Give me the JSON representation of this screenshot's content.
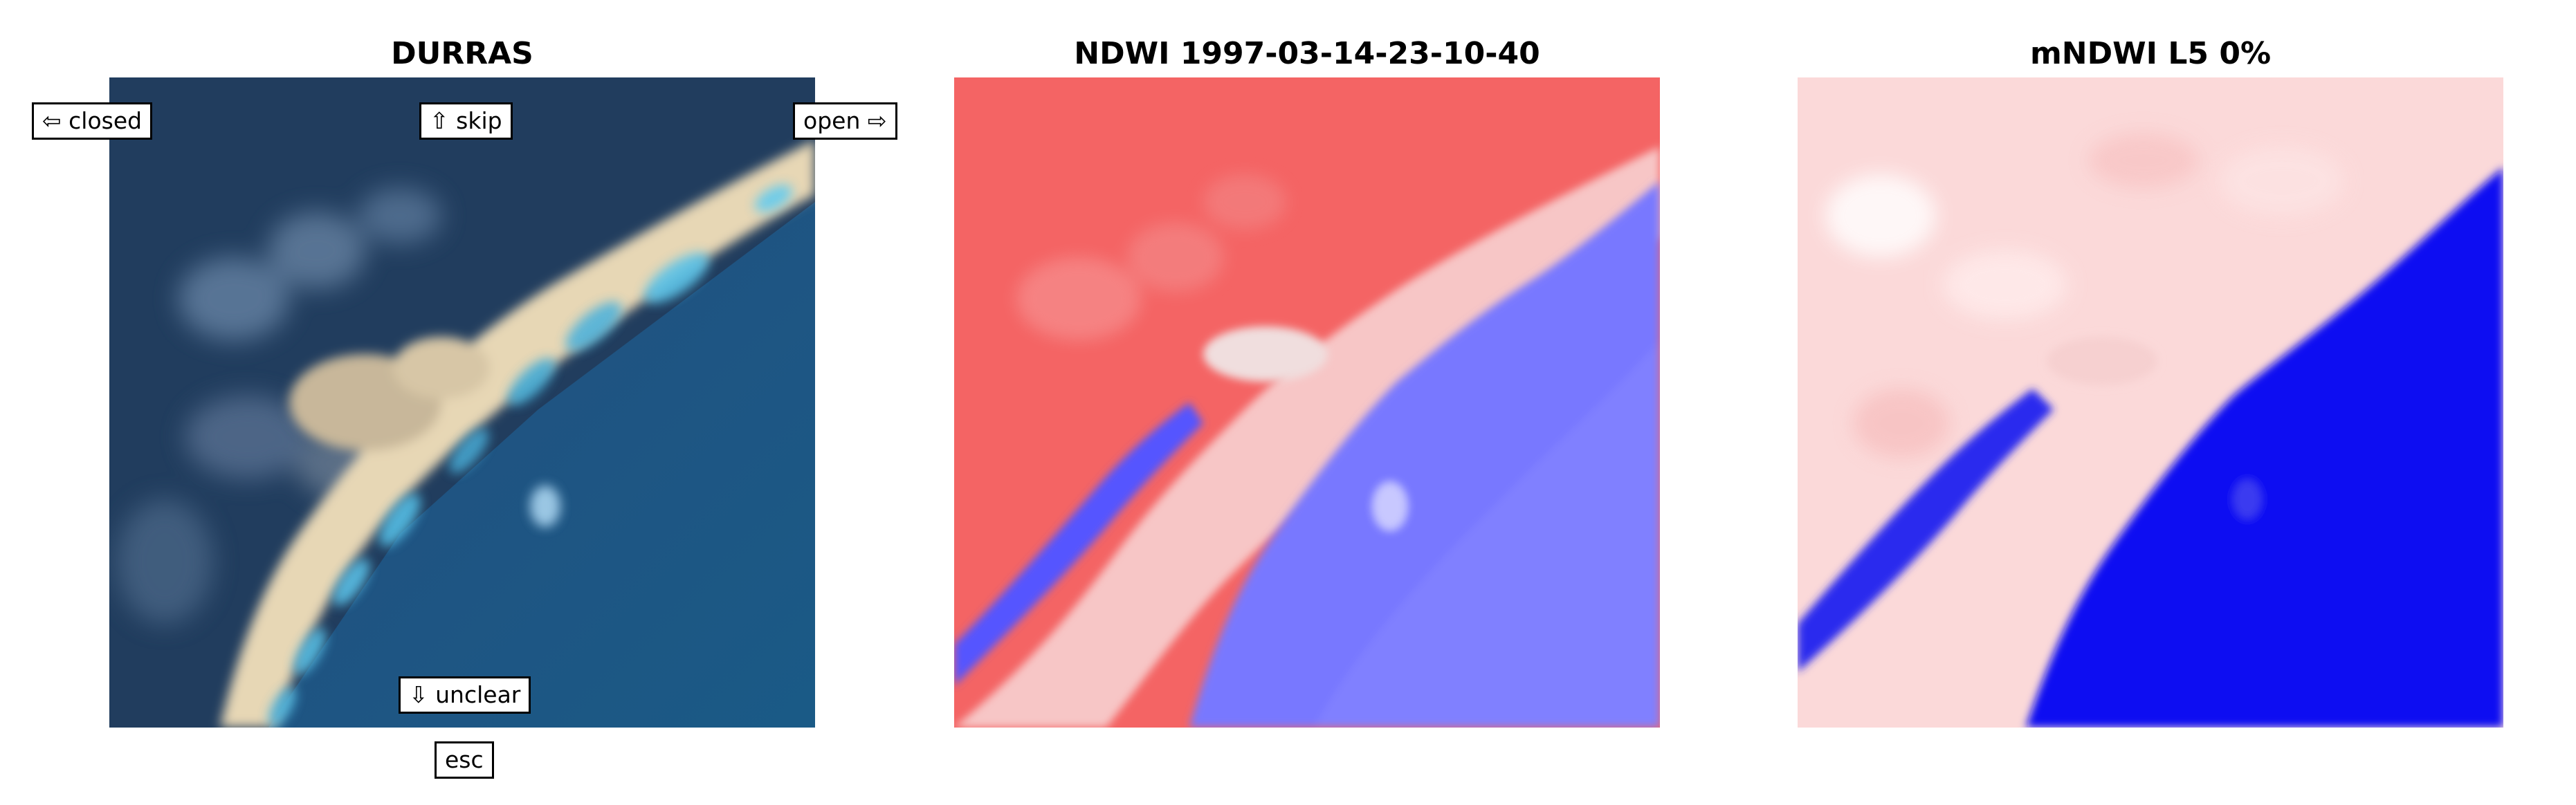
{
  "panels": [
    {
      "title": "DURRAS"
    },
    {
      "title": "NDWI 1997-03-14-23-10-40"
    },
    {
      "title": "mNDWI L5 0%"
    }
  ],
  "keys": {
    "closed": "⇦ closed",
    "skip": "⇧ skip",
    "open": "open ⇨",
    "unclear": "⇩ unclear",
    "esc": "esc"
  },
  "colors": {
    "deep_ocean": "#1f4a7a",
    "shallow_surf": "#52b8e0",
    "sand": "#e6d6b4",
    "land_dark": "#213d5e",
    "ndwi_positive_red": "#f05a5a",
    "ndwi_negative_blue": "#1a1aff",
    "neutral_white": "#ffffff"
  }
}
